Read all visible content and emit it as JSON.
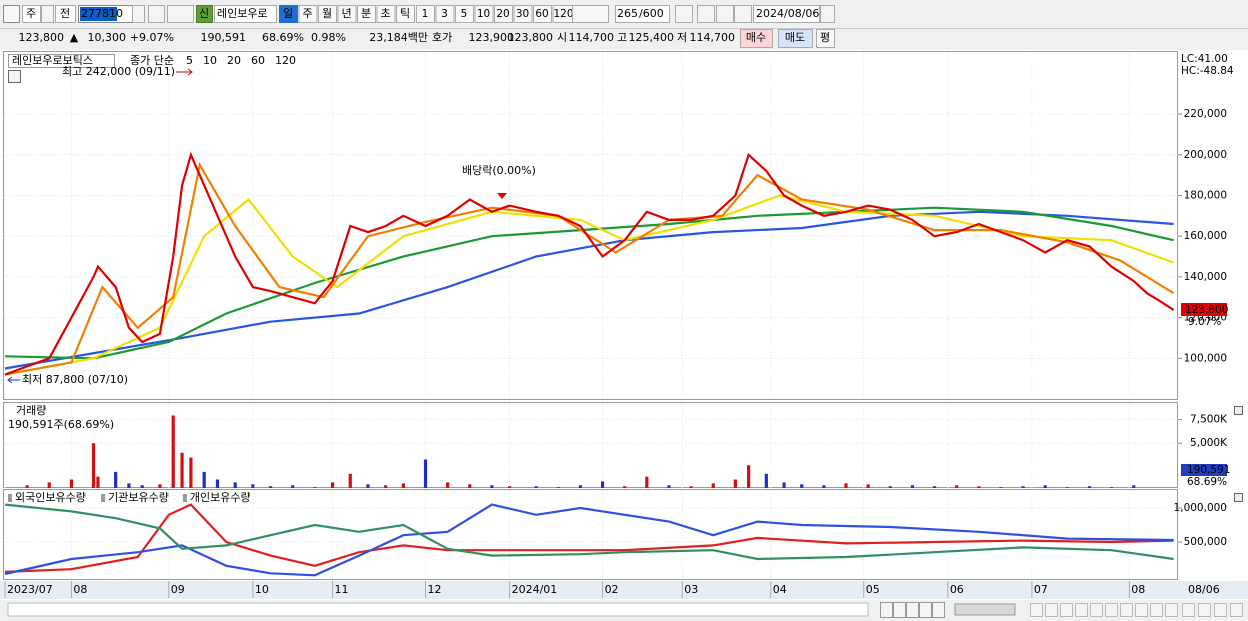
{
  "toolbar": {
    "market": "주",
    "mode": "전",
    "code": "277810",
    "badge": "신",
    "name": "레인보우로",
    "periods": [
      "일",
      "주",
      "월",
      "년",
      "분",
      "초",
      "틱"
    ],
    "intervals": [
      "1",
      "3",
      "5",
      "10",
      "20",
      "30",
      "60",
      "120"
    ],
    "count": "265",
    "max": "/600",
    "date": "2024/08/06"
  },
  "quote": {
    "price": "123,800",
    "arrow": "▲",
    "change": "10,300",
    "rate": "+9.07%",
    "volume": "190,591",
    "volume_ratio": "68.69%",
    "turnover": "0.98%",
    "amount": "23,184백만",
    "ask_label": "호가",
    "ask": "123,900",
    "bid": "123,800",
    "open_label": "시",
    "open": "114,700",
    "high_label": "고",
    "high": "125,400",
    "low_label": "저",
    "low": "114,700",
    "buttons": [
      "매수",
      "매도",
      "평"
    ]
  },
  "xaxis": {
    "xlim": [
      0,
      265
    ],
    "xticks": [
      {
        "value": 0,
        "label": "2023/07"
      },
      {
        "value": 15,
        "label": "08"
      },
      {
        "value": 37,
        "label": "09"
      },
      {
        "value": 56,
        "label": "10"
      },
      {
        "value": 74,
        "label": "11"
      },
      {
        "value": 95,
        "label": "12"
      },
      {
        "value": 114,
        "label": "2024/01"
      },
      {
        "value": 135,
        "label": "02"
      },
      {
        "value": 153,
        "label": "03"
      },
      {
        "value": 173,
        "label": "04"
      },
      {
        "value": 194,
        "label": "05"
      },
      {
        "value": 213,
        "label": "06"
      },
      {
        "value": 232,
        "label": "07"
      },
      {
        "value": 254,
        "label": "08"
      }
    ],
    "last_date": "08/06"
  },
  "chart_data": [
    {
      "type": "line",
      "title": "레인보우로보틱스",
      "subtitle": "종가 단순",
      "annotations": {
        "high": "최고 242,000 (09/11)",
        "low": "최저 87,800 (07/10)",
        "dividend": "배당락(0.00%)",
        "lc": "LC:41.00",
        "hc": "HC:-48.84",
        "last": "123,800",
        "last_rate": "9.07%"
      },
      "ylim": [
        80000,
        250000
      ],
      "yticks": [
        {
          "value": 100000,
          "label": "100,000"
        },
        {
          "value": 120000,
          "label": "120,000"
        },
        {
          "value": 140000,
          "label": "140,000"
        },
        {
          "value": 160000,
          "label": "160,000"
        },
        {
          "value": 180000,
          "label": "180,000"
        },
        {
          "value": 200000,
          "label": "200,000"
        },
        {
          "value": 220000,
          "label": "220,000"
        }
      ],
      "series": [
        {
          "name": "120",
          "color": "#2a55e0",
          "x": [
            0,
            40,
            60,
            80,
            100,
            120,
            140,
            160,
            180,
            200,
            220,
            240,
            264
          ],
          "values": [
            95000,
            110000,
            118000,
            122000,
            135000,
            150000,
            158000,
            162000,
            164000,
            170000,
            172000,
            170000,
            166000
          ]
        },
        {
          "name": "60",
          "color": "#1a9a30",
          "x": [
            0,
            20,
            37,
            50,
            70,
            90,
            110,
            130,
            150,
            170,
            190,
            210,
            230,
            250,
            264
          ],
          "values": [
            101000,
            100000,
            108000,
            122000,
            137000,
            150000,
            160000,
            163000,
            166000,
            170000,
            172000,
            174000,
            172000,
            165000,
            158000
          ]
        },
        {
          "name": "20",
          "color": "#f0e000",
          "x": [
            0,
            20,
            35,
            45,
            55,
            65,
            75,
            90,
            110,
            130,
            140,
            160,
            175,
            190,
            210,
            230,
            250,
            264
          ],
          "values": [
            92000,
            100000,
            115000,
            160000,
            178000,
            150000,
            135000,
            160000,
            172000,
            168000,
            158000,
            168000,
            180000,
            172000,
            170000,
            160000,
            158000,
            147000
          ]
        },
        {
          "name": "10",
          "color": "#f08000",
          "x": [
            0,
            15,
            22,
            30,
            38,
            44,
            52,
            62,
            72,
            82,
            95,
            110,
            125,
            138,
            150,
            162,
            170,
            180,
            195,
            210,
            225,
            240,
            252,
            264
          ],
          "values": [
            92000,
            98000,
            135000,
            115000,
            130000,
            195000,
            165000,
            135000,
            130000,
            160000,
            167000,
            174000,
            170000,
            152000,
            168000,
            170000,
            190000,
            178000,
            173000,
            163000,
            163000,
            157000,
            148000,
            132000
          ]
        },
        {
          "name": "5",
          "color": "#e00000",
          "x": [
            0,
            5,
            10,
            15,
            20,
            21,
            25,
            28,
            31,
            35,
            38,
            40,
            42,
            45,
            48,
            52,
            56,
            60,
            65,
            70,
            74,
            78,
            82,
            86,
            90,
            95,
            100,
            105,
            110,
            114,
            120,
            125,
            130,
            135,
            140,
            145,
            150,
            155,
            160,
            165,
            168,
            172,
            176,
            180,
            185,
            190,
            195,
            200,
            205,
            210,
            215,
            220,
            225,
            230,
            235,
            240,
            245,
            250,
            255,
            258,
            261,
            264
          ],
          "values": [
            92000,
            96000,
            100000,
            120000,
            140000,
            145000,
            135000,
            115000,
            108000,
            112000,
            150000,
            185000,
            200000,
            185000,
            170000,
            150000,
            135000,
            133000,
            130000,
            127000,
            138000,
            165000,
            162000,
            165000,
            170000,
            165000,
            170000,
            178000,
            172000,
            175000,
            172000,
            170000,
            165000,
            150000,
            158000,
            172000,
            168000,
            168000,
            170000,
            180000,
            200000,
            192000,
            180000,
            175000,
            170000,
            172000,
            175000,
            173000,
            168000,
            160000,
            162000,
            166000,
            162000,
            158000,
            152000,
            158000,
            155000,
            145000,
            138000,
            132000,
            128000,
            123800
          ]
        }
      ]
    },
    {
      "type": "bar",
      "title": "거래량",
      "subtitle": "190,591주(68.69%)",
      "last": "190,591",
      "last_ratio": "68.69%",
      "ylim": [
        0,
        9000000
      ],
      "yticks": [
        {
          "value": 5000000,
          "label": "5,000K"
        },
        {
          "value": 7500000,
          "label": "7,500K"
        }
      ],
      "series": [
        {
          "name": "거래량",
          "color": "#d01010",
          "x": [
            0,
            5,
            10,
            15,
            20,
            21,
            25,
            28,
            31,
            35,
            38,
            40,
            42,
            45,
            48,
            52,
            56,
            60,
            65,
            70,
            74,
            78,
            82,
            86,
            90,
            95,
            100,
            105,
            110,
            114,
            120,
            125,
            130,
            135,
            140,
            145,
            150,
            155,
            160,
            165,
            168,
            172,
            176,
            180,
            185,
            190,
            195,
            200,
            205,
            210,
            215,
            220,
            225,
            230,
            235,
            240,
            245,
            250,
            255,
            258,
            261,
            264
          ],
          "values": [
            300000,
            600000,
            900000,
            1200000,
            5000000,
            1500000,
            2000000,
            800000,
            600000,
            700000,
            7900000,
            4000000,
            3500000,
            2000000,
            1200000,
            900000,
            700000,
            500000,
            600000,
            400000,
            900000,
            1800000,
            700000,
            600000,
            800000,
            3300000,
            900000,
            700000,
            600000,
            500000,
            500000,
            400000,
            600000,
            1000000,
            500000,
            1500000,
            600000,
            500000,
            800000,
            1200000,
            2700000,
            1800000,
            900000,
            700000,
            600000,
            800000,
            700000,
            500000,
            600000,
            500000,
            600000,
            500000,
            400000,
            500000,
            600000,
            400000,
            500000,
            400000,
            600000,
            300000,
            300000,
            190591
          ]
        }
      ]
    },
    {
      "type": "line",
      "ylim": [
        0,
        1250000
      ],
      "yticks": [
        {
          "value": 500000,
          "label": "500,000"
        },
        {
          "value": 1000000,
          "label": "1,000,000"
        }
      ],
      "series": [
        {
          "name": "외국인보유수량",
          "color": "#e02020",
          "x": [
            0,
            15,
            30,
            37,
            42,
            50,
            60,
            70,
            80,
            90,
            100,
            120,
            140,
            160,
            170,
            190,
            210,
            230,
            250,
            264
          ],
          "values": [
            60000,
            100000,
            280000,
            900000,
            1050000,
            500000,
            300000,
            150000,
            350000,
            450000,
            380000,
            380000,
            380000,
            450000,
            560000,
            480000,
            500000,
            520000,
            500000,
            520000
          ]
        },
        {
          "name": "기관보유수량",
          "color": "#3050e0",
          "x": [
            0,
            15,
            30,
            40,
            50,
            60,
            70,
            80,
            90,
            100,
            110,
            120,
            130,
            140,
            150,
            160,
            170,
            180,
            200,
            220,
            240,
            264
          ],
          "values": [
            30000,
            250000,
            350000,
            450000,
            150000,
            40000,
            10000,
            300000,
            600000,
            650000,
            1050000,
            900000,
            1000000,
            900000,
            800000,
            600000,
            800000,
            750000,
            720000,
            650000,
            550000,
            530000
          ]
        },
        {
          "name": "개인보유수량",
          "color": "#309060",
          "x": [
            0,
            15,
            25,
            35,
            40,
            50,
            60,
            70,
            80,
            90,
            100,
            110,
            130,
            140,
            160,
            170,
            190,
            210,
            230,
            250,
            264
          ],
          "values": [
            1050000,
            950000,
            850000,
            700000,
            400000,
            450000,
            600000,
            750000,
            650000,
            750000,
            400000,
            300000,
            320000,
            350000,
            380000,
            250000,
            280000,
            350000,
            420000,
            380000,
            250000
          ]
        }
      ]
    }
  ]
}
